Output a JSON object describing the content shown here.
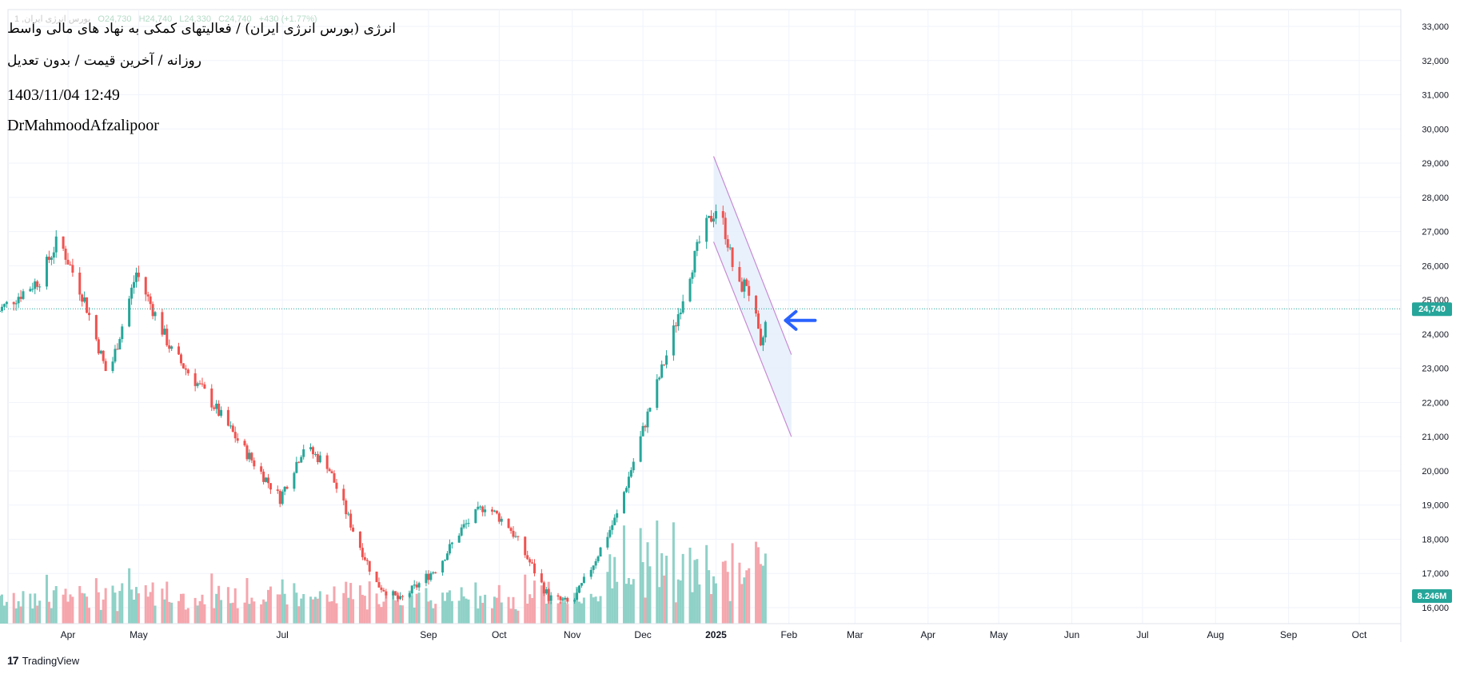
{
  "header": {
    "title": "انرژی (بورس انرژی ایران) / فعالیتهای کمکی به نهاد های مالی واسط",
    "subtitle": "روزانه / آخرین قیمت / بدون تعدیل",
    "datetime": "1403/11/04 12:49",
    "author": "DrMahmoodAfzalipoor"
  },
  "ohlc_bar": {
    "symbol": "1 ,بورس انرژی ایران",
    "open": "O24,730",
    "high": "H24,740",
    "low": "L24,330",
    "close": "C24,740",
    "change": "+430 (+1.77%)"
  },
  "brand": {
    "name": "TradingView"
  },
  "colors": {
    "up": "#26a69a",
    "down": "#ef5350",
    "up_volume": "#8fd1c7",
    "down_volume": "#f5a6ad",
    "price_label_bg": "#26a69a",
    "channel_line": "#c78ad4",
    "channel_fill": "#e3eefb",
    "arrow": "#2962ff",
    "grid": "#f0f3fa"
  },
  "icons": {
    "annotation_arrow": "left-arrow-icon",
    "brand_logo": "tradingview-logo-icon"
  },
  "chart_data": {
    "type": "candlestick",
    "interval": "daily",
    "price_axis": {
      "range": [
        15800,
        33300
      ],
      "ticks": [
        "16,000",
        "17,000",
        "18,000",
        "19,000",
        "20,000",
        "21,000",
        "22,000",
        "23,000",
        "24,000",
        "25,000",
        "26,000",
        "27,000",
        "28,000",
        "29,000",
        "30,000",
        "31,000",
        "32,000",
        "33,000"
      ]
    },
    "time_axis": {
      "ticks": [
        {
          "label": "Apr",
          "date": "2024-04-01"
        },
        {
          "label": "May",
          "date": "2024-05-01"
        },
        {
          "label": "Jul",
          "date": "2024-07-01"
        },
        {
          "label": "Sep",
          "date": "2024-09-01"
        },
        {
          "label": "Oct",
          "date": "2024-10-01"
        },
        {
          "label": "Nov",
          "date": "2024-11-01"
        },
        {
          "label": "Dec",
          "date": "2024-12-01"
        },
        {
          "label": "2025",
          "date": "2025-01-01"
        },
        {
          "label": "Feb",
          "date": "2025-02-01"
        },
        {
          "label": "Mar",
          "date": "2025-03-01"
        },
        {
          "label": "Apr",
          "date": "2025-04-01"
        },
        {
          "label": "May",
          "date": "2025-05-01"
        },
        {
          "label": "Jun",
          "date": "2025-06-01"
        },
        {
          "label": "Jul",
          "date": "2025-07-01"
        },
        {
          "label": "Aug",
          "date": "2025-08-01"
        },
        {
          "label": "Sep",
          "date": "2025-09-01"
        },
        {
          "label": "Oct",
          "date": "2025-10-01"
        }
      ]
    },
    "last_price": {
      "value": 24740,
      "label": "24,740"
    },
    "last_volume": {
      "value": 8246000,
      "label": "8.246M"
    },
    "volume_max": 21000000,
    "price_path": [
      {
        "date": "2024-03-01",
        "price": 24600
      },
      {
        "date": "2024-03-20",
        "price": 25600
      },
      {
        "date": "2024-03-28",
        "price": 26800
      },
      {
        "date": "2024-04-08",
        "price": 25000
      },
      {
        "date": "2024-04-18",
        "price": 22700
      },
      {
        "date": "2024-04-30",
        "price": 25800
      },
      {
        "date": "2024-05-15",
        "price": 23500
      },
      {
        "date": "2024-05-30",
        "price": 22200
      },
      {
        "date": "2024-06-15",
        "price": 20600
      },
      {
        "date": "2024-06-30",
        "price": 19200
      },
      {
        "date": "2024-07-10",
        "price": 20700
      },
      {
        "date": "2024-07-20",
        "price": 20200
      },
      {
        "date": "2024-08-01",
        "price": 18100
      },
      {
        "date": "2024-08-10",
        "price": 16700
      },
      {
        "date": "2024-08-20",
        "price": 16200
      },
      {
        "date": "2024-09-05",
        "price": 17200
      },
      {
        "date": "2024-09-15",
        "price": 18300
      },
      {
        "date": "2024-09-25",
        "price": 19000
      },
      {
        "date": "2024-10-05",
        "price": 18400
      },
      {
        "date": "2024-10-15",
        "price": 17200
      },
      {
        "date": "2024-10-22",
        "price": 16300
      },
      {
        "date": "2024-11-01",
        "price": 16100
      },
      {
        "date": "2024-11-10",
        "price": 17300
      },
      {
        "date": "2024-11-20",
        "price": 18700
      },
      {
        "date": "2024-11-28",
        "price": 20500
      },
      {
        "date": "2024-12-05",
        "price": 22100
      },
      {
        "date": "2024-12-12",
        "price": 23600
      },
      {
        "date": "2024-12-20",
        "price": 25600
      },
      {
        "date": "2024-12-26",
        "price": 26900
      },
      {
        "date": "2025-01-02",
        "price": 27800
      },
      {
        "date": "2025-01-06",
        "price": 26700
      },
      {
        "date": "2025-01-10",
        "price": 25300
      },
      {
        "date": "2025-01-14",
        "price": 25500
      },
      {
        "date": "2025-01-18",
        "price": 24400
      },
      {
        "date": "2025-01-20",
        "price": 23500
      },
      {
        "date": "2025-01-22",
        "price": 24300
      },
      {
        "date": "2025-01-23",
        "price": 24740
      }
    ],
    "descending_channel": {
      "upper": [
        {
          "date": "2024-12-31",
          "price": 29200
        },
        {
          "date": "2025-02-02",
          "price": 23400
        }
      ],
      "lower": [
        {
          "date": "2024-12-31",
          "price": 26700
        },
        {
          "date": "2025-02-02",
          "price": 21000
        }
      ]
    },
    "arrow_annotation": {
      "date": "2025-02-08",
      "price": 24400
    }
  }
}
